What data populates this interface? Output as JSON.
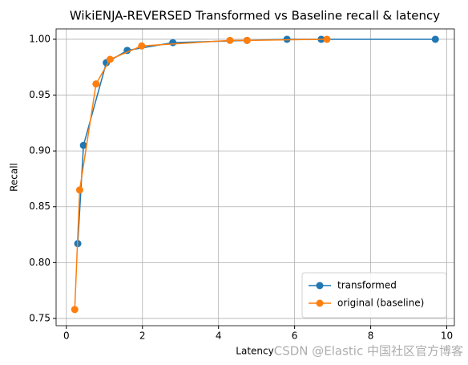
{
  "chart_data": {
    "type": "line",
    "title": "WikiENJA-REVERSED Transformed vs Baseline recall & latency",
    "x_label": "Latency",
    "y_label": "Recall",
    "series": [
      {
        "name": "transformed",
        "color": "#1f77b4",
        "x": [
          0.3,
          0.45,
          1.05,
          1.6,
          2.8,
          4.75,
          5.8,
          6.7,
          9.7
        ],
        "values": [
          0.817,
          0.905,
          0.979,
          0.99,
          0.997,
          0.999,
          1.0,
          1.0,
          1.0
        ]
      },
      {
        "name": "original (baseline)",
        "color": "#ff7f0e",
        "x": [
          0.22,
          0.35,
          0.78,
          1.15,
          1.98,
          4.3,
          4.75,
          6.85
        ],
        "values": [
          0.758,
          0.865,
          0.96,
          0.982,
          0.994,
          0.999,
          0.999,
          1.0
        ]
      }
    ],
    "xlim": [
      -0.27,
      10.2
    ],
    "xticks": [
      0,
      2,
      4,
      6,
      8,
      10
    ],
    "ylim": [
      0.7435,
      1.0093
    ],
    "yticks": [
      0.75,
      {
        "value": 0.8,
        "label": "0.80"
      },
      0.85,
      {
        "value": 0.9,
        "label": "0.90"
      },
      0.95,
      {
        "value": 1,
        "label": "1.00"
      }
    ],
    "grid": true,
    "legend": "lower right",
    "watermark": "CSDN @Elastic 中国社区官方博客"
  }
}
